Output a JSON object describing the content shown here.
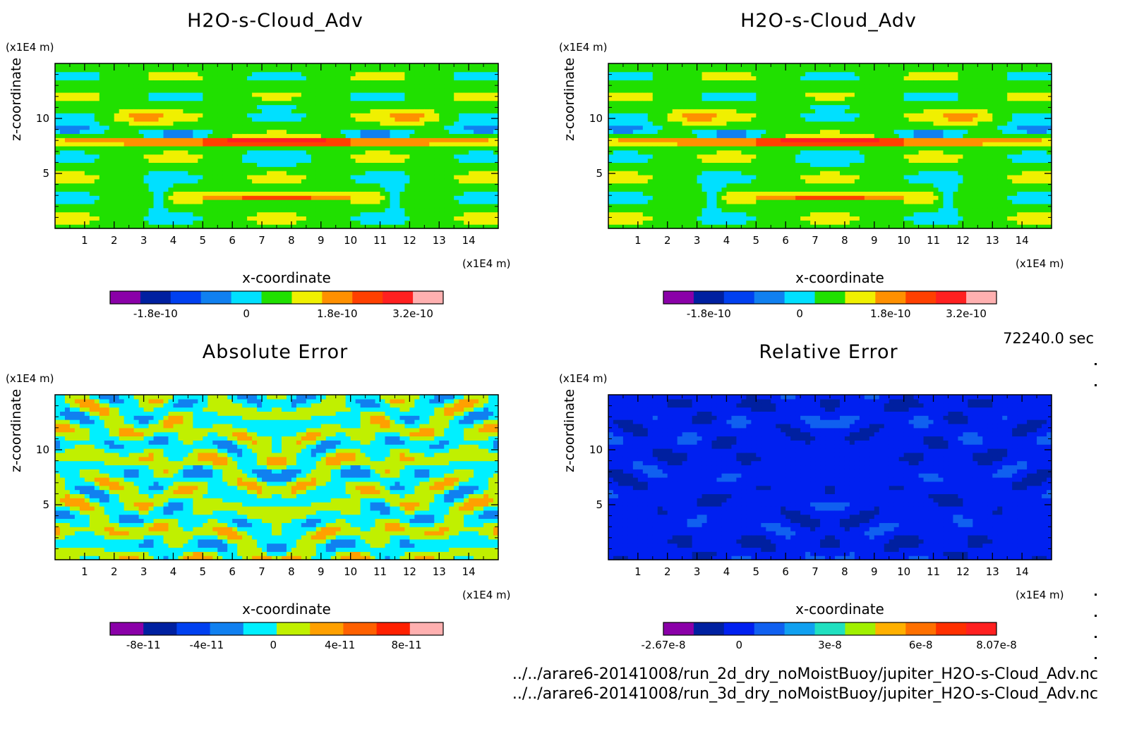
{
  "colorbar_palettes": {
    "data_fields": [
      "#8a00a8",
      "#0020a0",
      "#0040f0",
      "#1080f0",
      "#00e0ff",
      "#20e000",
      "#f0f000",
      "#ff9000",
      "#ff4000",
      "#ff2020",
      "#ffb0b0"
    ],
    "absolute_error": [
      "#8a00a8",
      "#0020a0",
      "#0040f0",
      "#1080f0",
      "#00f0ff",
      "#c0f000",
      "#ffa000",
      "#ff6000",
      "#ff2000",
      "#ffb0b0"
    ],
    "relative_error": [
      "#8a00a8",
      "#0020a0",
      "#0020f0",
      "#1060f0",
      "#10a0f0",
      "#20e0c0",
      "#a0f000",
      "#ffb000",
      "#ff7000",
      "#ff3000",
      "#ff2020"
    ]
  },
  "footer": {
    "timestamp": "72240.0 sec",
    "file1": "../../arare6-20141008/run_2d_dry_noMoistBuoy/jupiter_H2O-s-Cloud_Adv.nc",
    "file2": "../../arare6-20141008/run_3d_dry_noMoistBuoy/jupiter_H2O-s-Cloud_Adv.nc"
  },
  "chart_data": [
    {
      "type": "heatmap",
      "title": "H2O-s-Cloud_Adv",
      "xlabel": "x-coordinate",
      "ylabel": "z-coordinate",
      "x_unit": "(x1E4 m)",
      "y_unit": "(x1E4 m)",
      "xlim": [
        0,
        15
      ],
      "ylim": [
        0,
        15
      ],
      "xticks": [
        "1",
        "2",
        "3",
        "4",
        "5",
        "6",
        "7",
        "8",
        "9",
        "10",
        "11",
        "12",
        "13",
        "14"
      ],
      "yticks": [
        "5",
        "10"
      ],
      "colorbar": {
        "labels": [
          "-1.8e-10",
          "0",
          "1.8e-10",
          "3.2e-10"
        ],
        "label_positions": [
          1.5,
          4.5,
          7.5,
          10.0
        ],
        "n_colors": 11
      },
      "palette": "data_fields",
      "pattern": "field"
    },
    {
      "type": "heatmap",
      "title": "H2O-s-Cloud_Adv",
      "xlabel": "x-coordinate",
      "ylabel": "z-coordinate",
      "x_unit": "(x1E4 m)",
      "y_unit": "(x1E4 m)",
      "xlim": [
        0,
        15
      ],
      "ylim": [
        0,
        15
      ],
      "xticks": [
        "1",
        "2",
        "3",
        "4",
        "5",
        "6",
        "7",
        "8",
        "9",
        "10",
        "11",
        "12",
        "13",
        "14"
      ],
      "yticks": [
        "5",
        "10"
      ],
      "colorbar": {
        "labels": [
          "-1.8e-10",
          "0",
          "1.8e-10",
          "3.2e-10"
        ],
        "label_positions": [
          1.5,
          4.5,
          7.5,
          10.0
        ],
        "n_colors": 11
      },
      "palette": "data_fields",
      "pattern": "field"
    },
    {
      "type": "heatmap",
      "title": "Absolute Error",
      "xlabel": "x-coordinate",
      "ylabel": "z-coordinate",
      "x_unit": "(x1E4 m)",
      "y_unit": "(x1E4 m)",
      "xlim": [
        0,
        15
      ],
      "ylim": [
        0,
        15
      ],
      "xticks": [
        "1",
        "2",
        "3",
        "4",
        "5",
        "6",
        "7",
        "8",
        "9",
        "10",
        "11",
        "12",
        "13",
        "14"
      ],
      "yticks": [
        "5",
        "10"
      ],
      "colorbar": {
        "labels": [
          "-8e-11",
          "-4e-11",
          "0",
          "4e-11",
          "8e-11"
        ],
        "label_positions": [
          1.0,
          2.9,
          4.9,
          6.9,
          8.9
        ],
        "n_colors": 10
      },
      "palette": "absolute_error",
      "pattern": "abs"
    },
    {
      "type": "heatmap",
      "title": "Relative Error",
      "xlabel": "x-coordinate",
      "ylabel": "z-coordinate",
      "x_unit": "(x1E4 m)",
      "y_unit": "(x1E4 m)",
      "xlim": [
        0,
        15
      ],
      "ylim": [
        0,
        15
      ],
      "xticks": [
        "1",
        "2",
        "3",
        "4",
        "5",
        "6",
        "7",
        "8",
        "9",
        "10",
        "11",
        "12",
        "13",
        "14"
      ],
      "yticks": [
        "5",
        "10"
      ],
      "colorbar": {
        "labels": [
          "-2.67e-8",
          "0",
          "3e-8",
          "6e-8",
          "8.07e-8"
        ],
        "label_positions": [
          0.0,
          2.5,
          5.5,
          8.5,
          11.0
        ],
        "n_colors": 11
      },
      "palette": "relative_error",
      "pattern": "rel"
    }
  ]
}
